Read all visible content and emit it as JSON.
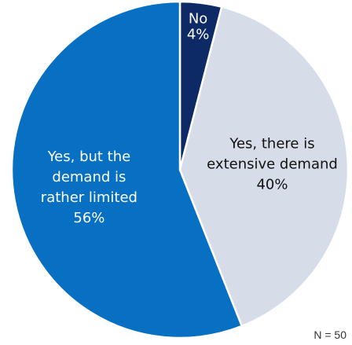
{
  "chart_data": {
    "type": "pie",
    "categories": [
      "No",
      "Yes, there is extensive demand",
      "Yes, but the demand is rather limited"
    ],
    "values": [
      4,
      40,
      56
    ],
    "value_labels": [
      "4%",
      "40%",
      "56%"
    ],
    "label_lines": [
      [
        "No",
        "4%"
      ],
      [
        "Yes, there is",
        "extensive demand",
        "40%"
      ],
      [
        "Yes, but the",
        "demand is",
        "rather limited",
        "56%"
      ]
    ],
    "colors": [
      "#0d2a66",
      "#d6dce8",
      "#0870c3"
    ],
    "label_colors": [
      "#ffffff",
      "#111111",
      "#ffffff"
    ],
    "start_angle_deg": 0,
    "direction": "clockwise",
    "title": "",
    "legend": "none",
    "annotation": "N = 50"
  }
}
